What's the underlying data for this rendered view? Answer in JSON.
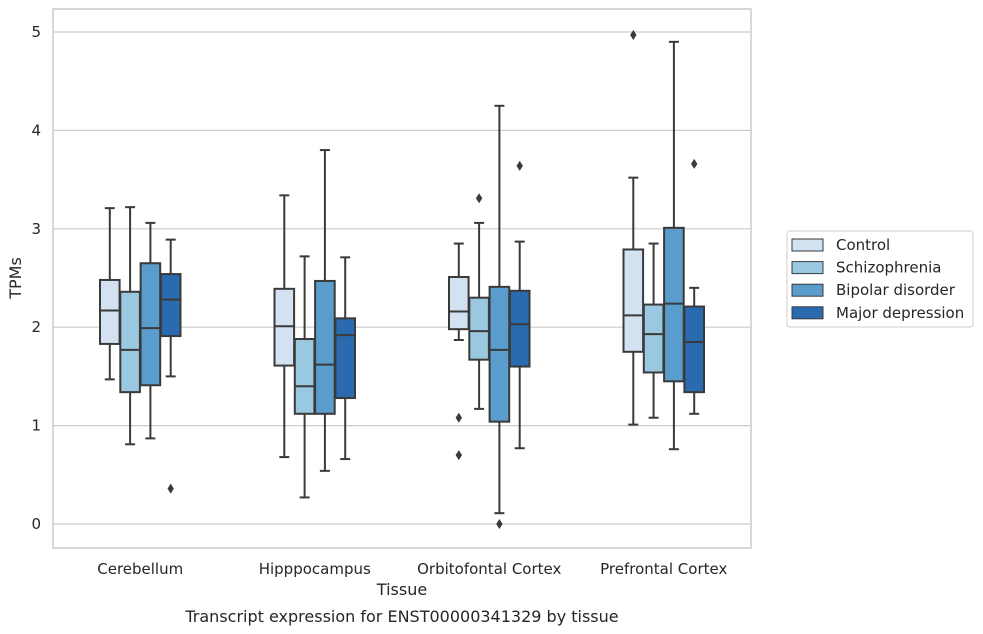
{
  "chart_data": {
    "type": "box",
    "xlabel": "Tissue",
    "ylabel": "TPMs",
    "caption": "Transcript expression for ENST00000341329 by tissue",
    "ylim": [
      -0.25,
      5.22
    ],
    "yticks": [
      0,
      1,
      2,
      3,
      4,
      5
    ],
    "grid": "horizontal",
    "legend_position": "right",
    "categories": [
      "Cerebellum",
      "Hipppocampus",
      "Orbitofontal Cortex",
      "Prefrontal Cortex"
    ],
    "series": [
      {
        "name": "Control",
        "color": "#d2e2f1",
        "boxes": [
          {
            "whisker_low": 1.47,
            "q1": 1.83,
            "median": 2.17,
            "q3": 2.48,
            "whisker_high": 3.21,
            "outliers": []
          },
          {
            "whisker_low": 0.68,
            "q1": 1.61,
            "median": 2.01,
            "q3": 2.39,
            "whisker_high": 3.34,
            "outliers": []
          },
          {
            "whisker_low": 1.87,
            "q1": 1.98,
            "median": 2.16,
            "q3": 2.51,
            "whisker_high": 2.85,
            "outliers": [
              1.08,
              0.7
            ]
          },
          {
            "whisker_low": 1.01,
            "q1": 1.75,
            "median": 2.12,
            "q3": 2.79,
            "whisker_high": 3.52,
            "outliers": [
              4.97
            ]
          }
        ]
      },
      {
        "name": "Schizophrenia",
        "color": "#9ac8e0",
        "boxes": [
          {
            "whisker_low": 0.81,
            "q1": 1.34,
            "median": 1.77,
            "q3": 2.36,
            "whisker_high": 3.22,
            "outliers": []
          },
          {
            "whisker_low": 0.27,
            "q1": 1.12,
            "median": 1.4,
            "q3": 1.88,
            "whisker_high": 2.72,
            "outliers": []
          },
          {
            "whisker_low": 1.17,
            "q1": 1.67,
            "median": 1.96,
            "q3": 2.3,
            "whisker_high": 3.06,
            "outliers": [
              3.31
            ]
          },
          {
            "whisker_low": 1.08,
            "q1": 1.54,
            "median": 1.93,
            "q3": 2.23,
            "whisker_high": 2.85,
            "outliers": []
          }
        ]
      },
      {
        "name": "Bipolar disorder",
        "color": "#5a9ccb",
        "boxes": [
          {
            "whisker_low": 0.87,
            "q1": 1.41,
            "median": 1.99,
            "q3": 2.65,
            "whisker_high": 3.06,
            "outliers": []
          },
          {
            "whisker_low": 0.54,
            "q1": 1.12,
            "median": 1.62,
            "q3": 2.47,
            "whisker_high": 3.8,
            "outliers": []
          },
          {
            "whisker_low": 0.11,
            "q1": 1.04,
            "median": 1.77,
            "q3": 2.41,
            "whisker_high": 4.25,
            "outliers": [
              0.0
            ]
          },
          {
            "whisker_low": 0.76,
            "q1": 1.45,
            "median": 2.24,
            "q3": 3.01,
            "whisker_high": 4.9,
            "outliers": []
          }
        ]
      },
      {
        "name": "Major depression",
        "color": "#2a6aae",
        "boxes": [
          {
            "whisker_low": 1.5,
            "q1": 1.91,
            "median": 2.28,
            "q3": 2.54,
            "whisker_high": 2.89,
            "outliers": [
              0.36
            ]
          },
          {
            "whisker_low": 0.66,
            "q1": 1.28,
            "median": 1.92,
            "q3": 2.09,
            "whisker_high": 2.71,
            "outliers": []
          },
          {
            "whisker_low": 0.77,
            "q1": 1.6,
            "median": 2.03,
            "q3": 2.37,
            "whisker_high": 2.87,
            "outliers": [
              3.64
            ]
          },
          {
            "whisker_low": 1.12,
            "q1": 1.34,
            "median": 1.85,
            "q3": 2.21,
            "whisker_high": 2.4,
            "outliers": [
              3.66
            ]
          }
        ]
      }
    ]
  }
}
